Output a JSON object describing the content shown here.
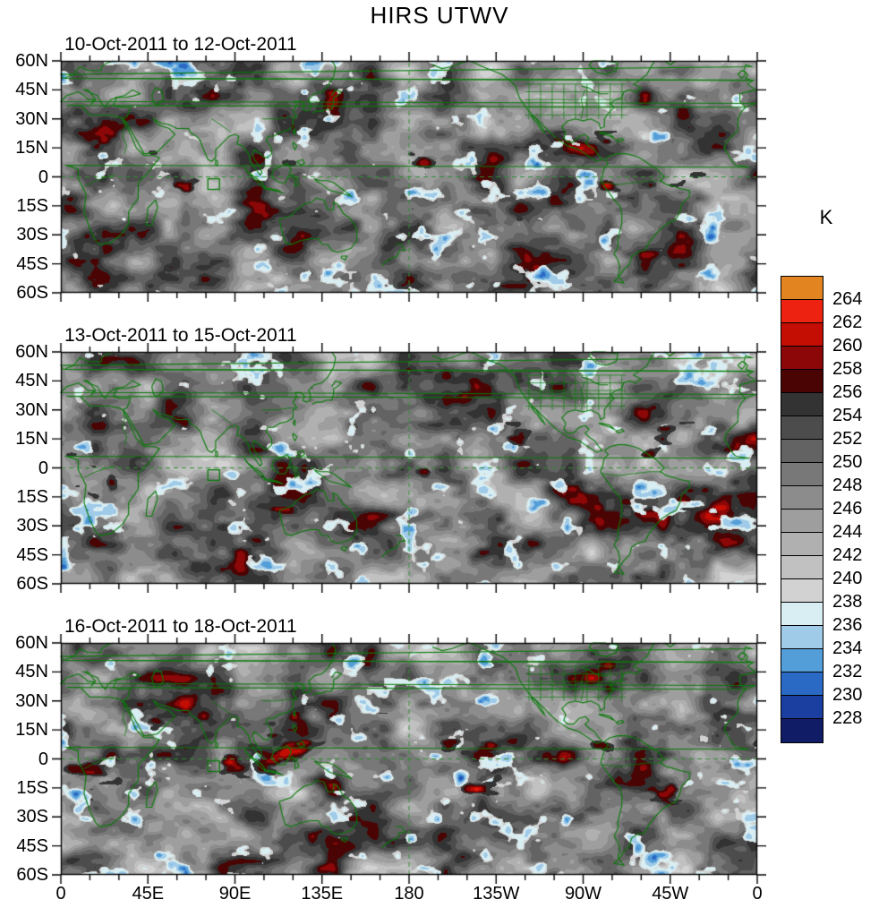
{
  "title": "HIRS UTWV",
  "panels": [
    {
      "title": "10-Oct-2011 to 12-Oct-2011"
    },
    {
      "title": "13-Oct-2011 to 15-Oct-2011"
    },
    {
      "title": "16-Oct-2011 to 18-Oct-2011"
    }
  ],
  "y_axis": {
    "tick_labels": [
      "60N",
      "45N",
      "30N",
      "15N",
      "0",
      "15S",
      "30S",
      "45S",
      "60S"
    ]
  },
  "x_axis": {
    "tick_labels": [
      "0",
      "45E",
      "90E",
      "135E",
      "180",
      "135W",
      "90W",
      "45W",
      "0"
    ]
  },
  "colorbar": {
    "unit": "K",
    "tick_labels": [
      "264",
      "262",
      "260",
      "258",
      "256",
      "254",
      "252",
      "250",
      "248",
      "246",
      "244",
      "242",
      "240",
      "238",
      "236",
      "234",
      "232",
      "230",
      "228"
    ]
  },
  "chart_data": {
    "type": "heatmap",
    "title": "HIRS UTWV",
    "unit": "K",
    "panel_titles": [
      "10-Oct-2011 to 12-Oct-2011",
      "13-Oct-2011 to 15-Oct-2011",
      "16-Oct-2011 to 18-Oct-2011"
    ],
    "lon_tick_labels": [
      "0",
      "45E",
      "90E",
      "135E",
      "180",
      "135W",
      "90W",
      "45W",
      "0"
    ],
    "lat_tick_labels": [
      "60N",
      "45N",
      "30N",
      "15N",
      "0",
      "15S",
      "30S",
      "45S",
      "60S"
    ],
    "map_extent": {
      "lon_deg_east": [
        0,
        360
      ],
      "lat": [
        -60,
        60
      ]
    },
    "colorbar_levels_k": [
      228,
      230,
      232,
      234,
      236,
      238,
      240,
      242,
      244,
      246,
      248,
      250,
      252,
      254,
      256,
      258,
      260,
      262,
      264
    ],
    "colorbar_colors_bottom_to_top": [
      "#111c66",
      "#1a3fa0",
      "#2b6ac4",
      "#539dd8",
      "#9fcae8",
      "#d9eef2",
      "#d2d2d2",
      "#c1c1c1",
      "#b0b0b0",
      "#9e9e9e",
      "#8c8c8c",
      "#787878",
      "#636363",
      "#4c4c4c",
      "#333333",
      "#4a0404",
      "#8c0707",
      "#c40d03",
      "#ee2211",
      "#e2841f"
    ],
    "overlay": {
      "coastline_color": "#0a7a0a",
      "equator_dashed_line": true,
      "dateline_dashed_line": true,
      "marker_square_lonlat": [
        79,
        -4
      ]
    }
  }
}
